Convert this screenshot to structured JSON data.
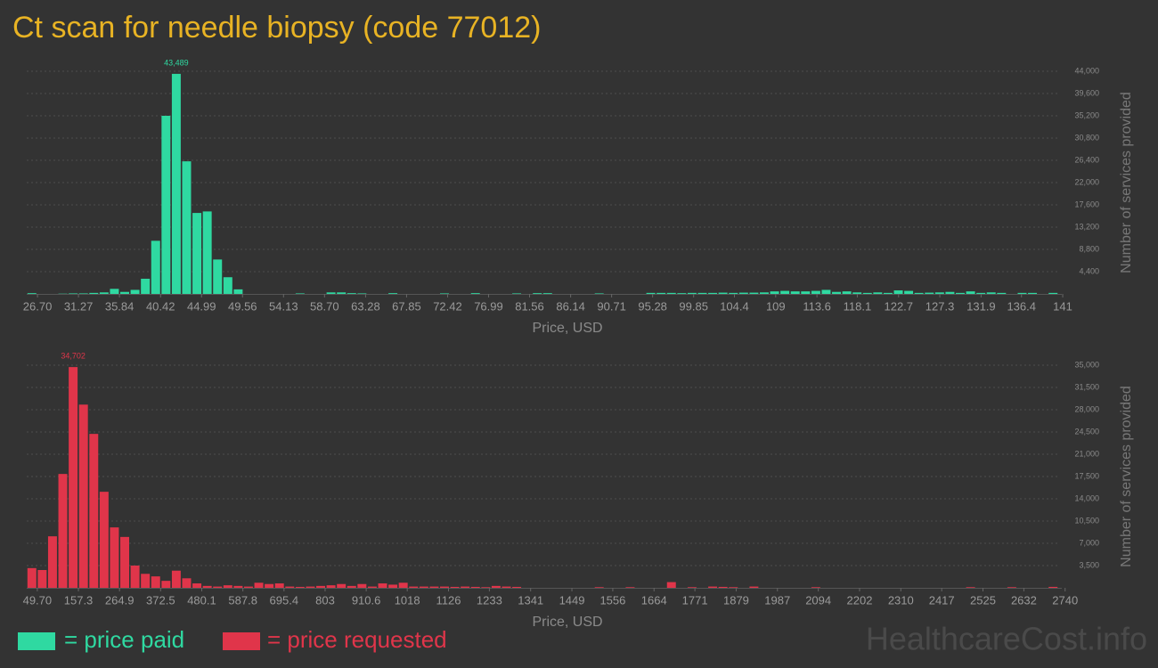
{
  "title": "Ct scan for needle biopsy (code 77012)",
  "watermark": "HealthcareCost.info",
  "chart_data": [
    {
      "type": "histogram",
      "name": "= price paid",
      "color": "#2fd9a1",
      "x_label": "Price, USD",
      "y_label": "Number of services provided",
      "bins": [
        25.5,
        26.65,
        27.8,
        28.95,
        30.1,
        31.25,
        32.4,
        33.55,
        34.7,
        35.85,
        37,
        38.15,
        39.3,
        40.45,
        41.6,
        42.75,
        43.9,
        45.05,
        46.2,
        47.35,
        48.5,
        49.65,
        50.8,
        51.95,
        53.1,
        54.25,
        55.4,
        56.55,
        57.7,
        58.85,
        60,
        61.15,
        62.3,
        63.45,
        64.6,
        65.75,
        66.9,
        68.05,
        69.2,
        70.35,
        71.5,
        72.65,
        73.8,
        74.95,
        76.1,
        77.25,
        78.4,
        79.55,
        80.7,
        81.85,
        83,
        84.15,
        85.3,
        86.45,
        87.6,
        88.75,
        89.9,
        91.05,
        92.2,
        93.35,
        94.5,
        95.65,
        96.8,
        97.95,
        99.1,
        100.25,
        101.4,
        102.55,
        103.7,
        104.85,
        106,
        107.15,
        108.3,
        109.45,
        110.6,
        111.75,
        112.9,
        114.05,
        115.2,
        116.35,
        117.5,
        118.65,
        119.8,
        120.95,
        122.1,
        123.25,
        124.4,
        125.55,
        126.7,
        127.85,
        129,
        130.15,
        131.3,
        132.45,
        133.6,
        134.75,
        135.9,
        137.05,
        138.2,
        139.35,
        140.5
      ],
      "values": [
        150,
        0,
        0,
        50,
        100,
        100,
        200,
        300,
        1000,
        400,
        800,
        3000,
        10500,
        35200,
        43489,
        26200,
        16000,
        16300,
        6800,
        3300,
        900,
        0,
        0,
        0,
        0,
        0,
        100,
        0,
        0,
        300,
        300,
        150,
        100,
        0,
        0,
        150,
        0,
        0,
        0,
        0,
        100,
        0,
        0,
        150,
        0,
        0,
        0,
        100,
        0,
        150,
        150,
        0,
        0,
        0,
        0,
        100,
        0,
        0,
        0,
        0,
        200,
        200,
        200,
        150,
        200,
        200,
        200,
        250,
        200,
        250,
        250,
        300,
        500,
        600,
        500,
        500,
        600,
        800,
        400,
        500,
        300,
        200,
        300,
        200,
        700,
        600,
        200,
        250,
        300,
        400,
        200,
        500,
        200,
        300,
        200,
        0,
        200,
        200,
        0,
        200
      ],
      "value_labels": [
        null,
        null,
        null,
        null,
        null,
        null,
        null,
        null,
        null,
        null,
        null,
        null,
        null,
        null,
        "43,489",
        null,
        null,
        null,
        null,
        null,
        null,
        null,
        null,
        null,
        null,
        null,
        null,
        null,
        null,
        null,
        null,
        null,
        null,
        null,
        null,
        null,
        null,
        null,
        null,
        null,
        null,
        null,
        null,
        null,
        null,
        null,
        null,
        null,
        null,
        null,
        null,
        null,
        null,
        null,
        null,
        null,
        null,
        null,
        null,
        null,
        null,
        null,
        null,
        null,
        null,
        null,
        null,
        null,
        null,
        null,
        null,
        null,
        null,
        null,
        null,
        null,
        null,
        null,
        null,
        null,
        null,
        null,
        null,
        null,
        null,
        null,
        null,
        null,
        null,
        null,
        null,
        null,
        null,
        null,
        null,
        null,
        null,
        null,
        null,
        null
      ],
      "xlim": [
        25.5,
        140.5
      ],
      "xticks": [
        {
          "value": 26.7,
          "label": "26.70"
        },
        31.27,
        35.84,
        40.42,
        44.99,
        49.56,
        54.13,
        {
          "value": 58.7,
          "label": "58.70"
        },
        63.28,
        67.85,
        72.42,
        76.99,
        81.56,
        86.14,
        90.71,
        95.28,
        99.85,
        104.4,
        109,
        113.6,
        118.1,
        122.7,
        127.3,
        131.9,
        136.4,
        141
      ],
      "ylim": [
        0,
        44000
      ],
      "yticks": [
        {
          "value": 4400,
          "label": "4,400"
        },
        {
          "value": 8800,
          "label": "8,800"
        },
        {
          "value": 13200,
          "label": "13,200"
        },
        {
          "value": 17600,
          "label": "17,600"
        },
        {
          "value": 22000,
          "label": "22,000"
        },
        {
          "value": 26400,
          "label": "26,400"
        },
        {
          "value": 30800,
          "label": "30,800"
        },
        {
          "value": 35200,
          "label": "35,200"
        },
        {
          "value": 39600,
          "label": "39,600"
        },
        {
          "value": 44000,
          "label": "44,000"
        }
      ],
      "grid": true
    },
    {
      "type": "histogram",
      "name": "= price requested",
      "color": "#e0354a",
      "x_label": "Price, USD",
      "y_label": "Number of services provided",
      "bins": [
        22,
        49,
        76,
        103,
        130,
        157,
        184,
        211,
        238,
        265,
        292,
        319,
        346,
        373,
        400,
        427,
        454,
        481,
        508,
        535,
        562,
        589,
        616,
        643,
        670,
        697,
        724,
        751,
        778,
        805,
        832,
        859,
        886,
        913,
        940,
        967,
        994,
        1021,
        1048,
        1075,
        1102,
        1129,
        1156,
        1183,
        1210,
        1237,
        1264,
        1291,
        1318,
        1345,
        1372,
        1399,
        1426,
        1453,
        1480,
        1507,
        1534,
        1561,
        1588,
        1615,
        1642,
        1669,
        1696,
        1723,
        1750,
        1777,
        1804,
        1831,
        1858,
        1885,
        1912,
        1939,
        1966,
        1993,
        2020,
        2047,
        2074,
        2101,
        2128,
        2155,
        2182,
        2209,
        2236,
        2263,
        2290,
        2317,
        2344,
        2371,
        2398,
        2425,
        2452,
        2479,
        2506,
        2533,
        2560,
        2587,
        2614,
        2641,
        2668,
        2695,
        2722
      ],
      "values": [
        3100,
        2800,
        8100,
        17900,
        34702,
        28800,
        24200,
        15100,
        9500,
        8000,
        3500,
        2200,
        1800,
        1100,
        2700,
        1500,
        700,
        300,
        200,
        400,
        300,
        200,
        800,
        600,
        700,
        200,
        150,
        200,
        300,
        400,
        600,
        300,
        600,
        200,
        700,
        500,
        800,
        200,
        200,
        200,
        200,
        150,
        200,
        150,
        100,
        300,
        200,
        150,
        0,
        0,
        0,
        0,
        0,
        0,
        0,
        100,
        0,
        0,
        100,
        0,
        0,
        0,
        900,
        0,
        100,
        0,
        200,
        150,
        100,
        0,
        200,
        0,
        0,
        0,
        0,
        0,
        100,
        0,
        0,
        0,
        0,
        0,
        0,
        0,
        0,
        0,
        0,
        0,
        0,
        0,
        0,
        100,
        0,
        0,
        0,
        100,
        0,
        0,
        0,
        150
      ],
      "value_labels": [
        null,
        null,
        null,
        null,
        "34,702",
        null,
        null,
        null,
        null,
        null,
        null,
        null,
        null,
        null,
        null,
        null,
        null,
        null,
        null,
        null,
        null,
        null,
        null,
        null,
        null,
        null,
        null,
        null,
        null,
        null,
        null,
        null,
        null,
        null,
        null,
        null,
        null,
        null,
        null,
        null,
        null,
        null,
        null,
        null,
        null,
        null,
        null,
        null,
        null,
        null,
        null,
        null,
        null,
        null,
        null,
        null,
        null,
        null,
        null,
        null,
        null,
        null,
        null,
        null,
        null,
        null,
        null,
        null,
        null,
        null,
        null,
        null,
        null,
        null,
        null,
        null,
        null,
        null,
        null,
        null,
        null,
        null,
        null,
        null,
        null,
        null,
        null,
        null,
        null,
        null,
        null,
        null,
        null,
        null,
        null,
        null,
        null,
        null,
        null,
        null
      ],
      "xlim": [
        22,
        2722
      ],
      "xticks": [
        {
          "value": 49.7,
          "label": "49.70"
        },
        157.3,
        264.9,
        372.5,
        480.1,
        587.8,
        695.4,
        803,
        910.6,
        1018,
        1126,
        1233,
        1341,
        1449,
        1556,
        1664,
        1771,
        1879,
        1987,
        2094,
        2202,
        2310,
        2417,
        2525,
        2632,
        2740
      ],
      "ylim": [
        0,
        35000
      ],
      "yticks": [
        {
          "value": 3500,
          "label": "3,500"
        },
        {
          "value": 7000,
          "label": "7,000"
        },
        {
          "value": 10500,
          "label": "10,500"
        },
        {
          "value": 14000,
          "label": "14,000"
        },
        {
          "value": 17500,
          "label": "17,500"
        },
        {
          "value": 21000,
          "label": "21,000"
        },
        {
          "value": 24500,
          "label": "24,500"
        },
        {
          "value": 28000,
          "label": "28,000"
        },
        {
          "value": 31500,
          "label": "31,500"
        },
        {
          "value": 35000,
          "label": "35,000"
        }
      ],
      "grid": true
    }
  ]
}
